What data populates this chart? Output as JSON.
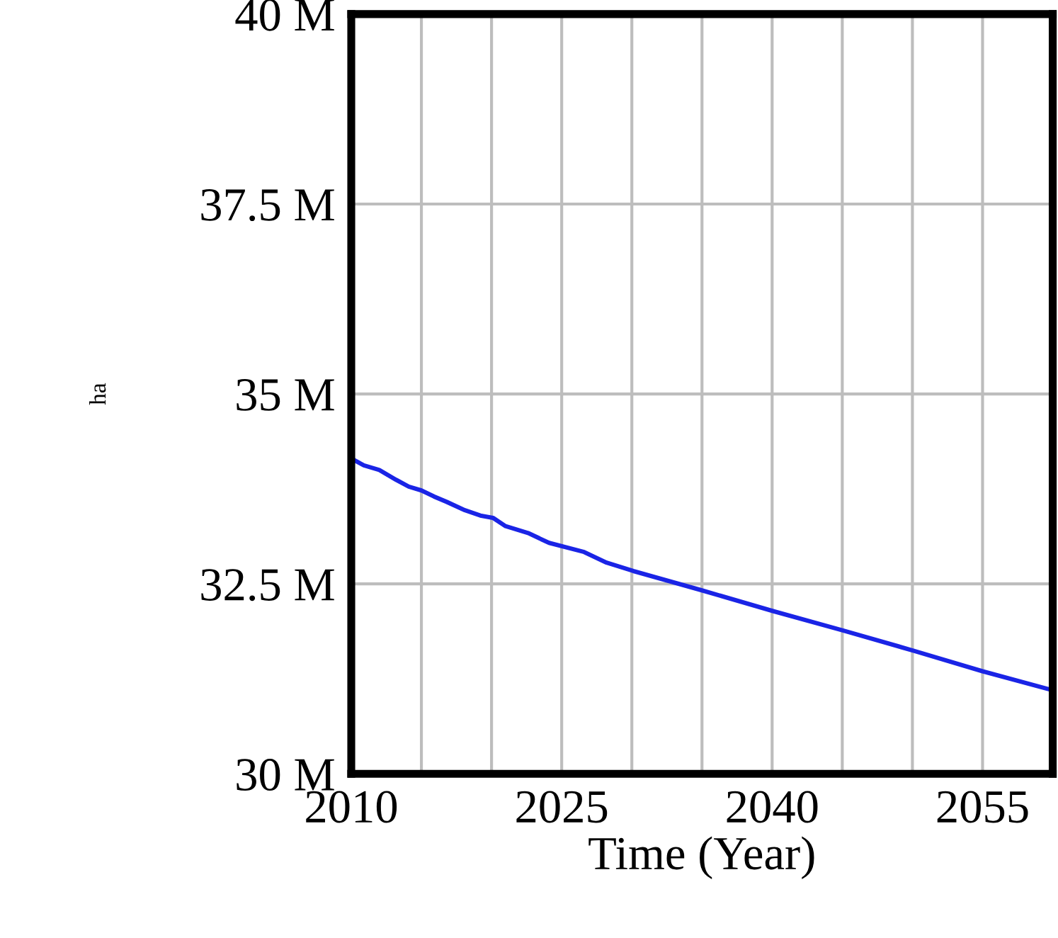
{
  "chart_data": {
    "type": "line",
    "xlabel": "Time (Year)",
    "ylabel": "ha",
    "x": [
      2010,
      2010.9,
      2012,
      2013.2,
      2014.1,
      2015,
      2015.9,
      2016.8,
      2018.1,
      2019.2,
      2020.1,
      2021,
      2022.6,
      2024.1,
      2026.6,
      2028.2,
      2030.1,
      2034.9,
      2040.1,
      2045,
      2050.1,
      2055,
      2060
    ],
    "series": [
      {
        "color": "#1a24e6",
        "values": [
          34.15,
          34.06,
          34.0,
          33.87,
          33.78,
          33.73,
          33.65,
          33.58,
          33.47,
          33.4,
          33.37,
          33.26,
          33.17,
          33.04,
          32.92,
          32.78,
          32.67,
          32.42,
          32.14,
          31.89,
          31.62,
          31.35,
          31.1
        ]
      }
    ],
    "xlim": [
      2010,
      2060
    ],
    "xticks": [
      2010,
      {
        "value": 2015,
        "label": null
      },
      {
        "value": 2020,
        "label": null
      },
      2025,
      {
        "value": 2030,
        "label": null
      },
      {
        "value": 2035,
        "label": null
      },
      2040,
      {
        "value": 2045,
        "label": null
      },
      {
        "value": 2050,
        "label": null
      },
      2055,
      {
        "value": 2060,
        "label": null
      }
    ],
    "ylim": [
      30,
      40
    ],
    "yticks": [
      {
        "value": 30,
        "label": "30 M"
      },
      {
        "value": 32.5,
        "label": "32.5 M"
      },
      {
        "value": 35,
        "label": "35 M"
      },
      {
        "value": 37.5,
        "label": "37.5 M"
      },
      {
        "value": 40,
        "label": "40 M"
      }
    ],
    "grid": true,
    "legend": false,
    "marker": "none",
    "line_style": "solid"
  }
}
